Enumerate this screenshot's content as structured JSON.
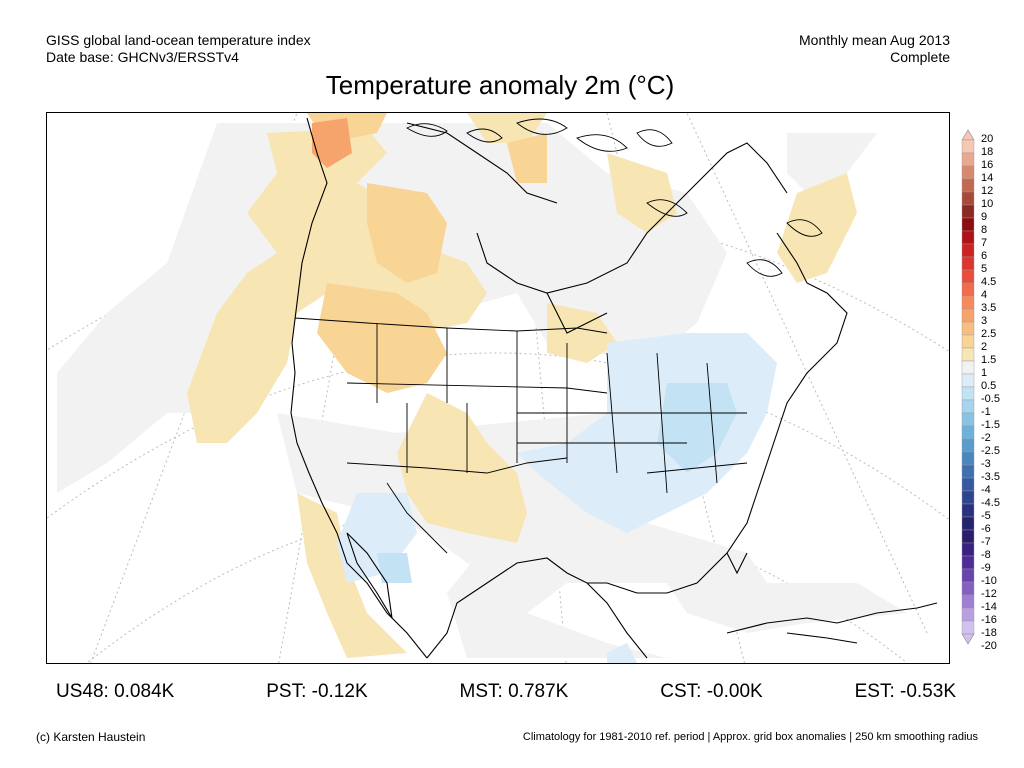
{
  "header": {
    "left_line1": "GISS global land-ocean temperature index",
    "left_line2": "Date base: GHCNv3/ERSSTv4",
    "right_line1": "Monthly mean Aug 2013",
    "right_line2": "Complete"
  },
  "title": "Temperature anomaly 2m (°C)",
  "colorbar": {
    "labels": [
      "20",
      "18",
      "16",
      "14",
      "12",
      "10",
      "9",
      "8",
      "7",
      "6",
      "5",
      "4.5",
      "4",
      "3.5",
      "3",
      "2.5",
      "2",
      "1.5",
      "1",
      "0.5",
      "-0.5",
      "-1",
      "-1.5",
      "-2",
      "-2.5",
      "-3",
      "-3.5",
      "-4",
      "-4.5",
      "-5",
      "-6",
      "-7",
      "-8",
      "-9",
      "-10",
      "-12",
      "-14",
      "-16",
      "-18",
      "-20"
    ],
    "colors": [
      "#f6c7b4",
      "#e9a88f",
      "#d6896f",
      "#c26a51",
      "#a94a38",
      "#8a2a22",
      "#8e0b12",
      "#b11218",
      "#cc2222",
      "#dd3630",
      "#ea4d3c",
      "#f16b4d",
      "#f58a5c",
      "#f7a46c",
      "#f8bd80",
      "#f8d495",
      "#f7e5b3",
      "#f2f2f2",
      "#dcecf8",
      "#c3e3f5",
      "#a6d4ee",
      "#88c3e5",
      "#6eb1da",
      "#5a9ccd",
      "#4b86bf",
      "#3f70b0",
      "#365aa0",
      "#2e4690",
      "#27337f",
      "#23246d",
      "#2b1d6a",
      "#3a2280",
      "#4f2d96",
      "#6a44ad",
      "#8560c2",
      "#9e7fd3",
      "#b8a0e2",
      "#d0c2ef"
    ],
    "arrow_top_color": "#f6c7b4",
    "arrow_bottom_color": "#d0c2ef"
  },
  "stats": {
    "us48": "US48: 0.084K",
    "pst": "PST: -0.12K",
    "mst": "MST: 0.787K",
    "cst": "CST: -0.00K",
    "est": "EST: -0.53K"
  },
  "footer": {
    "left": "(c) Karsten Haustein",
    "right": "Climatology for 1981-2010 ref. period | Approx. grid box anomalies | 250 km smoothing radius"
  },
  "map_colors": {
    "warm_light": "#f7e5b3",
    "warm_mid": "#f8d495",
    "warm_high": "#f7a46c",
    "near_zero": "#f2f2f2",
    "cool_light": "#dcecf8",
    "cool_mid": "#c3e3f5",
    "cool_high": "#a6d4ee"
  }
}
